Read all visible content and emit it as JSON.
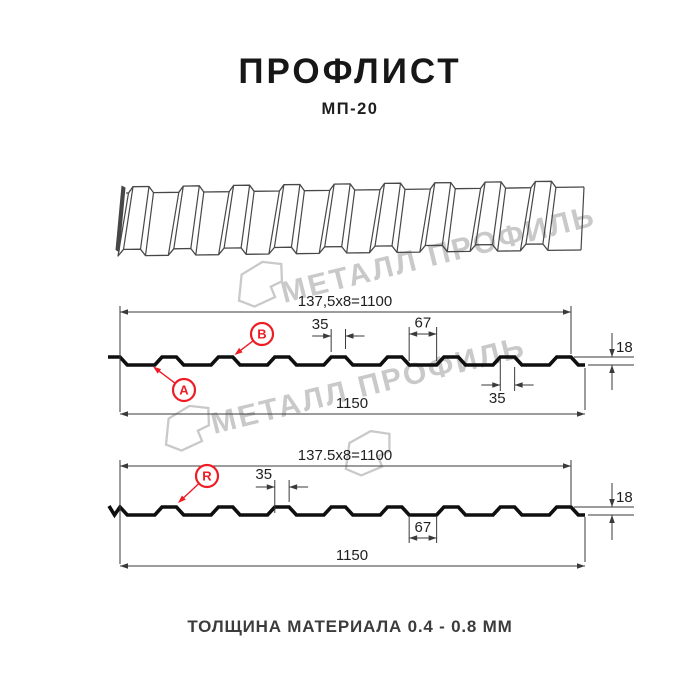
{
  "header": {
    "title": "ПРОФЛИСТ",
    "subtitle": "МП-20"
  },
  "footer": {
    "note": "ТОЛЩИНА МАТЕРИАЛА 0.4 - 0.8 ММ"
  },
  "watermark": {
    "brand": "МЕТАЛЛ ПРОФИЛЬ"
  },
  "colors": {
    "red": "#ee1c25",
    "ink": "#1f1f1f",
    "dim_line": "#3a3a3a",
    "profile_line": "#0f0f0f",
    "sketch_line": "#474747",
    "watermark": "#c9c9c9"
  },
  "sections": [
    {
      "id": "top-profile",
      "dim_width_formula": "137,5x8=1100",
      "dim_total_width": "1150",
      "dim_rib_width": "35",
      "dim_valley_width": "67",
      "dim_height": "18",
      "dim_rib_width_bottom": "35",
      "point_labels": [
        "A",
        "B"
      ]
    },
    {
      "id": "bottom-profile",
      "dim_width_formula": "137.5x8=1100",
      "dim_total_width": "1150",
      "dim_rib_width": "35",
      "dim_valley_width": "67",
      "dim_height": "18",
      "point_labels": [
        "R"
      ]
    }
  ]
}
